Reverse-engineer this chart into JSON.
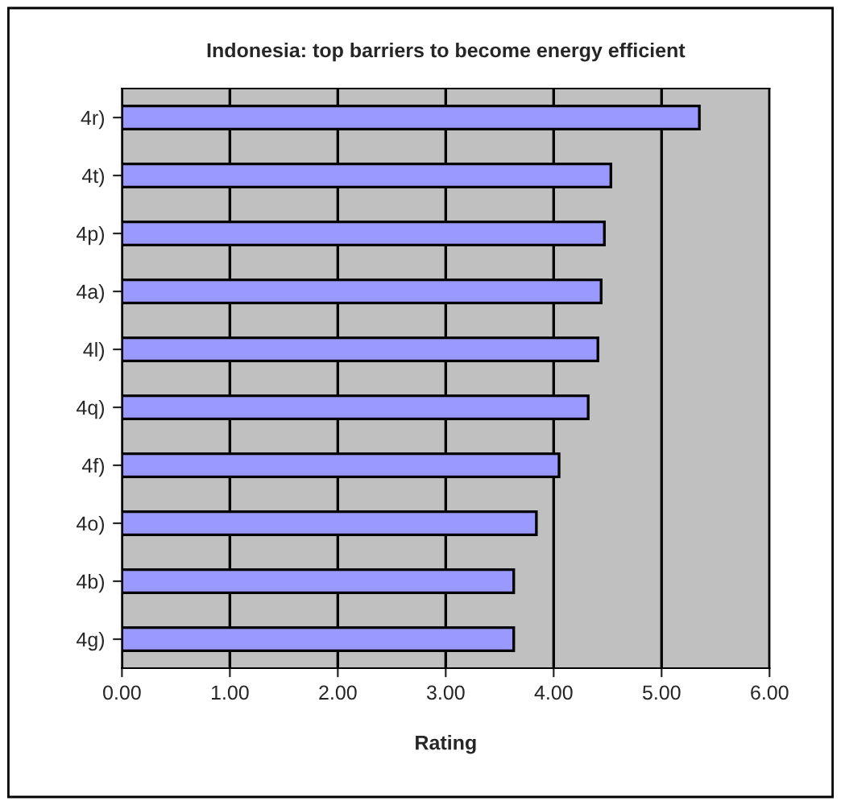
{
  "chart_data": {
    "type": "bar",
    "orientation": "horizontal",
    "title": "Indonesia: top barriers to become energy efficient",
    "xlabel": "Rating",
    "categories": [
      "4r)",
      "4t)",
      "4p)",
      "4a)",
      "4l)",
      "4q)",
      "4f)",
      "4o)",
      "4b)",
      "4g)"
    ],
    "values": [
      5.35,
      4.53,
      4.47,
      4.44,
      4.41,
      4.32,
      4.05,
      3.84,
      3.63,
      3.63
    ],
    "color": "#9999ff",
    "xlim": [
      0,
      6
    ],
    "xticks": [
      {
        "value": 0,
        "label": "0.00"
      },
      {
        "value": 1,
        "label": "1.00"
      },
      {
        "value": 2,
        "label": "2.00"
      },
      {
        "value": 3,
        "label": "3.00"
      },
      {
        "value": 4,
        "label": "4.00"
      },
      {
        "value": 5,
        "label": "5.00"
      },
      {
        "value": 6,
        "label": "6.00"
      }
    ],
    "grid": "x",
    "legend": false
  }
}
